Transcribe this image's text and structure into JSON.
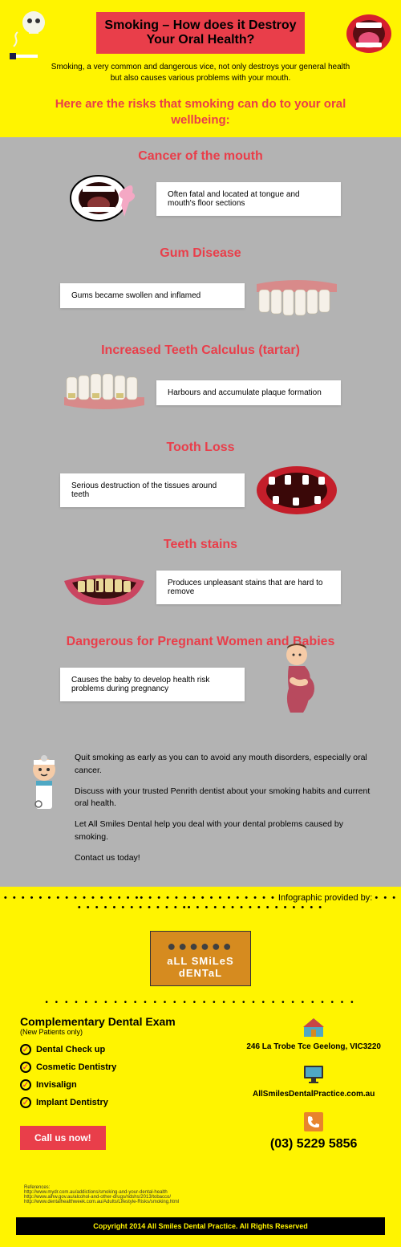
{
  "header": {
    "title": "Smoking – How does it Destroy Your Oral Health?",
    "subtitle": "Smoking, a very common and dangerous vice, not only destroys your general health but also causes various problems with your mouth.",
    "subheading": "Here are the risks that smoking can do to your oral wellbeing:"
  },
  "risks": [
    {
      "title": "Cancer of the mouth",
      "desc": "Often fatal and located at tongue and mouth's floor sections",
      "side": "left",
      "icon": "mouth-ribbon"
    },
    {
      "title": "Gum Disease",
      "desc": "Gums became swollen and inflamed",
      "side": "right",
      "icon": "upper-teeth"
    },
    {
      "title": "Increased Teeth Calculus (tartar)",
      "desc": "Harbours and accumulate plaque formation",
      "side": "left",
      "icon": "lower-teeth-tartar"
    },
    {
      "title": "Tooth Loss",
      "desc": "Serious destruction of the tissues around teeth",
      "side": "right",
      "icon": "mouth-missing-teeth"
    },
    {
      "title": "Teeth stains",
      "desc": "Produces unpleasant stains that are hard to remove",
      "side": "left",
      "icon": "stained-smile"
    },
    {
      "title": "Dangerous for Pregnant Women and Babies",
      "desc": "Causes the baby to develop health risk problems during pregnancy",
      "side": "right",
      "icon": "pregnant-woman"
    }
  ],
  "advice": [
    "Quit smoking as early as you can to avoid any mouth disorders, especially oral cancer.",
    "Discuss with your trusted Penrith dentist about your smoking habits and current oral health.",
    "Let All Smiles Dental help you deal with your dental problems caused by smoking.",
    "Contact us today!"
  ],
  "provider_label": "Infographic provided by:",
  "logo": {
    "line1": "aLL SMiLeS",
    "line2": "dENTaL"
  },
  "exam": {
    "title": "Complementary Dental Exam",
    "subtitle": "(New Patients only)",
    "items": [
      "Dental Check up",
      "Cosmetic Dentistry",
      "Invisalign",
      "Implant Dentistry"
    ],
    "cta": "Call us now!"
  },
  "contact": {
    "address": "246 La Trobe Tce Geelong, VIC3220",
    "website": "AllSmilesDentalPractice.com.au",
    "phone": "(03) 5229 5856"
  },
  "references": {
    "label": "References:",
    "items": [
      "http://www.mydr.com.au/addictions/smoking-and-your-dental-health",
      "http://www.aihw.gov.au/alcohol-and-other-drugs/ndshs/2013/tobacco/",
      "http://www.dentalhealthweek.com.au/Adults/Lifestyle-Risks/smoking.html"
    ]
  },
  "copyright": "Copyright 2014 All Smiles Dental Practice. All Rights Reserved",
  "colors": {
    "yellow": "#fff400",
    "red": "#e93e4a",
    "grey": "#b3b3b3",
    "orange": "#d68b1f"
  }
}
